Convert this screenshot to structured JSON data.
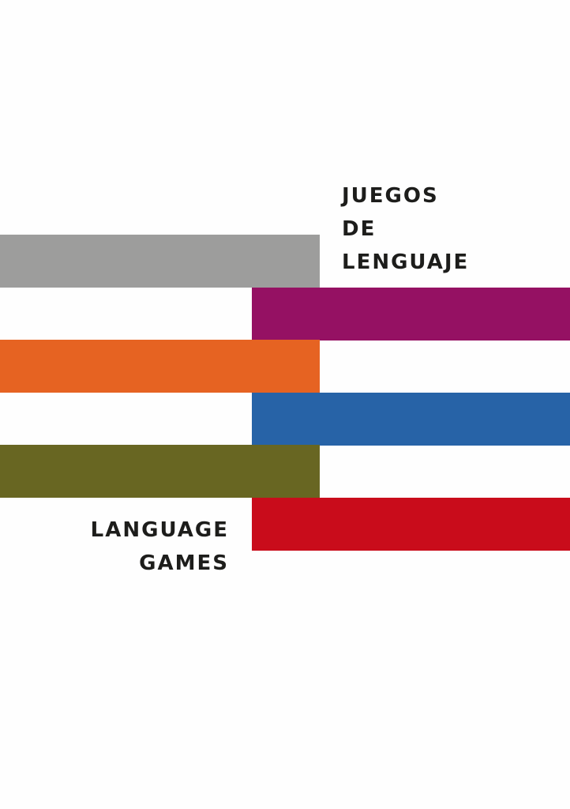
{
  "title_spanish": {
    "line1": "JUEGOS",
    "line2": "DE",
    "line3": "LENGUAJE"
  },
  "title_english": {
    "line1": "LANGUAGE",
    "line2": "GAMES"
  },
  "colors": {
    "background": "#fefefe",
    "text": "#1d1d1b",
    "gray_bar": "#9d9d9c",
    "magenta_bar": "#951163",
    "orange_bar": "#e66322",
    "blue_bar": "#2763a7",
    "olive_bar": "#686622",
    "red_bar": "#c90c1b"
  }
}
